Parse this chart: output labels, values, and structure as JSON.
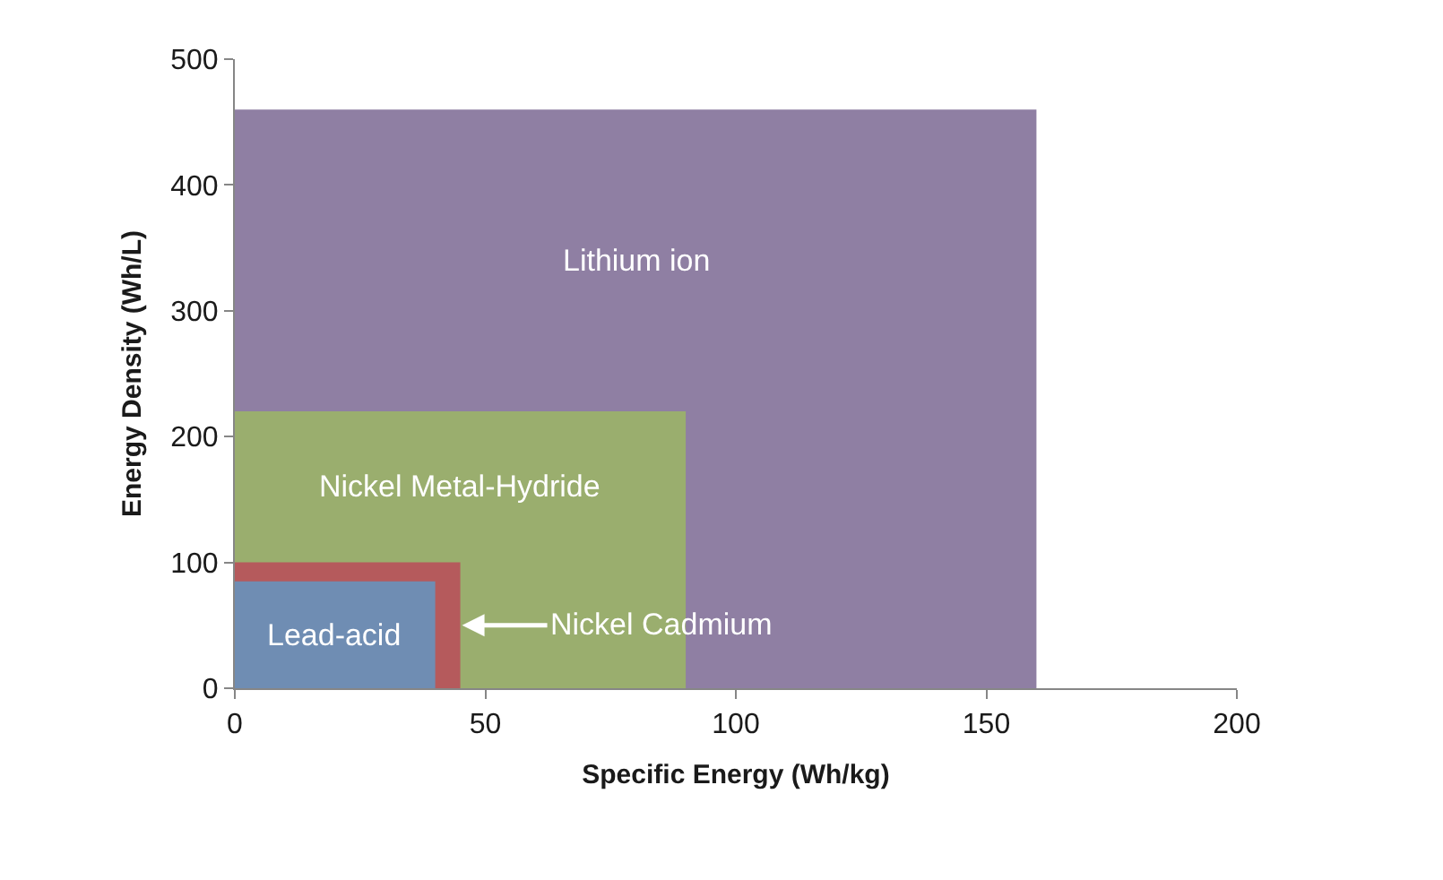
{
  "chart_data": {
    "type": "area",
    "xlabel": "Specific Energy (Wh/kg)",
    "ylabel": "Energy Density (Wh/L)",
    "xlim": [
      0,
      200
    ],
    "ylim": [
      0,
      500
    ],
    "xticks": [
      0,
      50,
      100,
      150,
      200
    ],
    "yticks": [
      0,
      100,
      200,
      300,
      400,
      500
    ],
    "grid": false,
    "legend": false,
    "series": [
      {
        "name": "Lithium ion",
        "color": "#8f7fa3",
        "x": [
          0,
          160
        ],
        "values": [
          460,
          460
        ]
      },
      {
        "name": "Nickel Metal-Hydride",
        "color": "#9aae6e",
        "x": [
          0,
          90
        ],
        "values": [
          220,
          220
        ]
      },
      {
        "name": "Nickel Cadmium",
        "color": "#b55a5c",
        "x": [
          0,
          45
        ],
        "values": [
          100,
          100
        ]
      },
      {
        "name": "Lead-acid",
        "color": "#6f8db3",
        "x": [
          0,
          40
        ],
        "values": [
          85,
          85
        ]
      }
    ]
  }
}
